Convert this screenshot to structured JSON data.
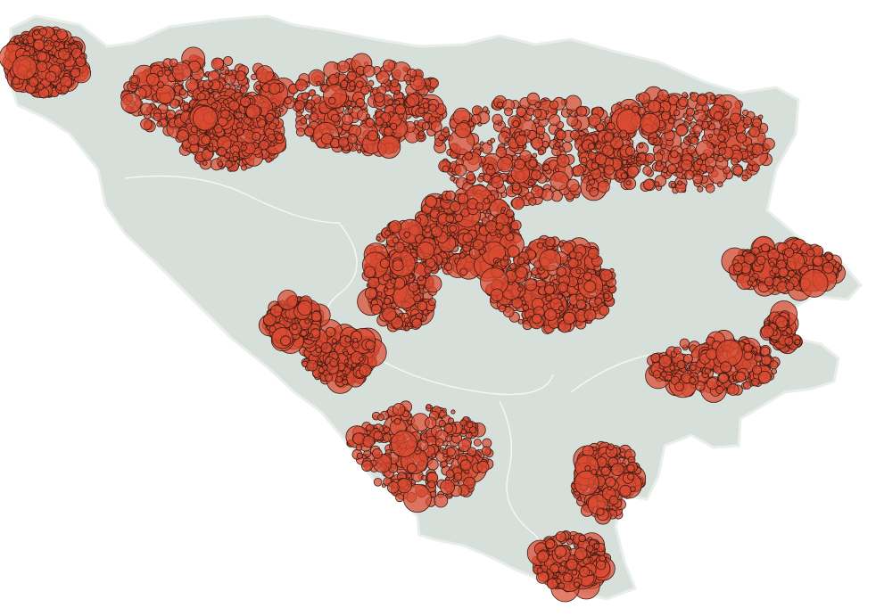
{
  "map": {
    "region_fill": "#d7dfda",
    "region_stroke": "#e9eeeb",
    "inner_boundary_color": "#f4f7f5",
    "marker_fill": "#db4b32",
    "marker_stroke": "#3c1a12",
    "marker_opacity": 0.72,
    "marker_count_estimate": 5000
  }
}
